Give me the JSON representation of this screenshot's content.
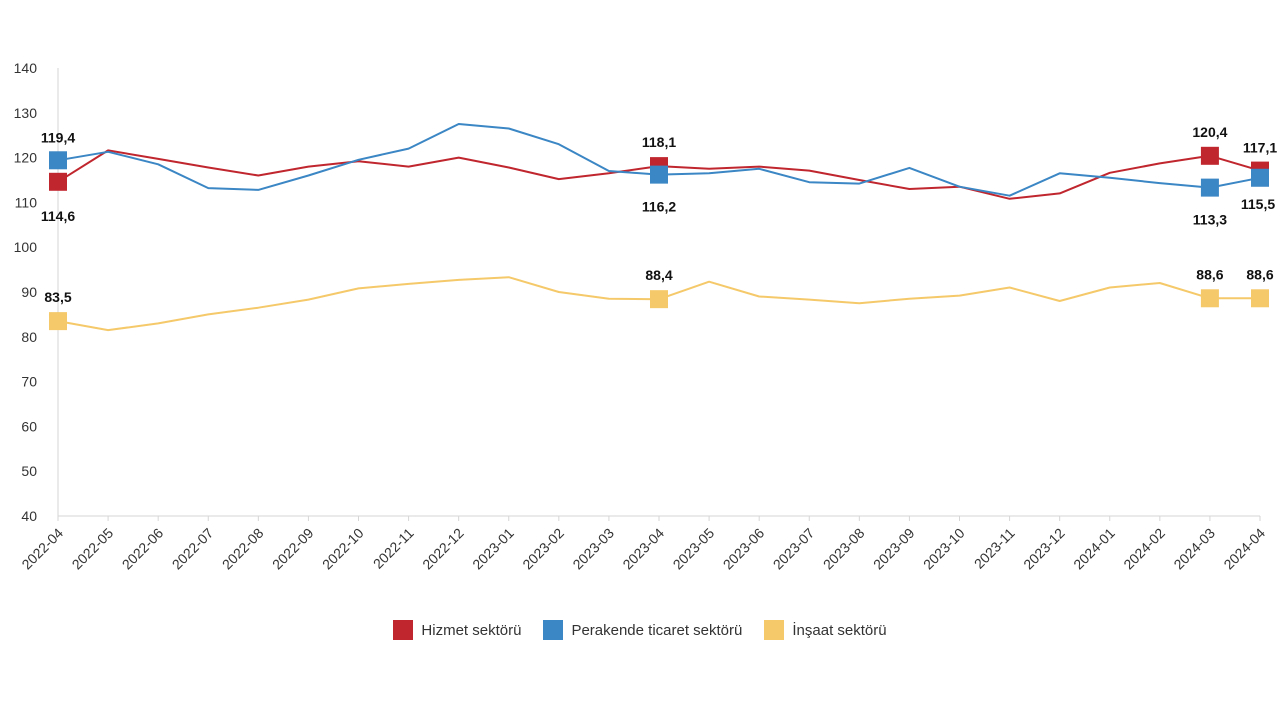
{
  "chart_data": {
    "type": "line",
    "x": [
      "2022-04",
      "2022-05",
      "2022-06",
      "2022-07",
      "2022-08",
      "2022-09",
      "2022-10",
      "2022-11",
      "2022-12",
      "2023-01",
      "2023-02",
      "2023-03",
      "2023-04",
      "2023-05",
      "2023-06",
      "2023-07",
      "2023-08",
      "2023-09",
      "2023-10",
      "2023-11",
      "2023-12",
      "2024-01",
      "2024-02",
      "2024-03",
      "2024-04"
    ],
    "ylim": [
      40,
      140
    ],
    "yticks": [
      40,
      50,
      60,
      70,
      80,
      90,
      100,
      110,
      120,
      130,
      140
    ],
    "grid": false,
    "legend_position": "bottom",
    "series": [
      {
        "name": "Hizmet sektörü",
        "color": "#c0262e",
        "values": [
          114.6,
          121.6,
          119.7,
          117.8,
          116.0,
          118.0,
          119.2,
          118.0,
          120.0,
          117.8,
          115.2,
          116.5,
          118.1,
          117.5,
          118.0,
          117.1,
          115.0,
          113.0,
          113.5,
          110.8,
          112.0,
          116.6,
          118.7,
          120.4,
          117.1
        ],
        "labels": [
          {
            "index": 0,
            "text": "114,6"
          },
          {
            "index": 12,
            "text": "118,1"
          },
          {
            "index": 23,
            "text": "120,4"
          },
          {
            "index": 24,
            "text": "117,1"
          }
        ]
      },
      {
        "name": "Perakende ticaret sektörü",
        "color": "#3b86c4",
        "values": [
          119.4,
          121.3,
          118.5,
          113.2,
          112.8,
          116.0,
          119.5,
          122.0,
          127.5,
          126.5,
          123.0,
          117.0,
          116.2,
          116.5,
          117.5,
          114.5,
          114.2,
          117.7,
          113.5,
          111.5,
          116.5,
          115.5,
          114.3,
          113.3,
          115.5
        ],
        "labels": [
          {
            "index": 0,
            "text": "119,4"
          },
          {
            "index": 12,
            "text": "116,2"
          },
          {
            "index": 23,
            "text": "113,3"
          },
          {
            "index": 24,
            "text": "115,5"
          }
        ]
      },
      {
        "name": "İnşaat sektörü",
        "color": "#f5c96a",
        "values": [
          83.5,
          81.5,
          83.0,
          85.0,
          86.5,
          88.3,
          90.8,
          91.8,
          92.7,
          93.3,
          90.0,
          88.5,
          88.4,
          92.3,
          89.0,
          88.3,
          87.5,
          88.5,
          89.2,
          91.0,
          88.0,
          91.0,
          92.0,
          88.6,
          88.6
        ],
        "labels": [
          {
            "index": 0,
            "text": "83,5"
          },
          {
            "index": 12,
            "text": "88,4"
          },
          {
            "index": 23,
            "text": "88,6"
          },
          {
            "index": 24,
            "text": "88,6"
          }
        ]
      }
    ]
  }
}
